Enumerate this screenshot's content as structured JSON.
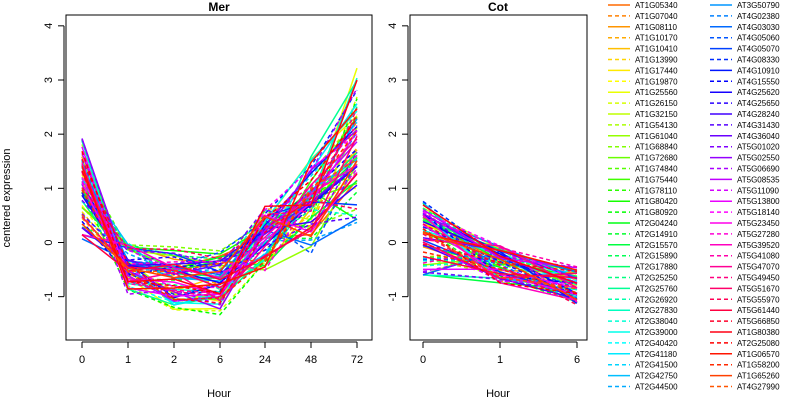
{
  "chart_data": {
    "type": "line",
    "ylabel": "centered expression",
    "xlabel": "Hour",
    "ylim": [
      -1.8,
      4.2
    ],
    "y_ticks": [
      -1,
      0,
      1,
      2,
      3,
      4
    ],
    "grid": false,
    "legend_position": "right",
    "panels": [
      {
        "title": "Mer",
        "x_ticks": [
          "0",
          "1",
          "2",
          "6",
          "24",
          "48",
          "72"
        ]
      },
      {
        "title": "Cot",
        "x_ticks": [
          "0",
          "1",
          "6"
        ]
      }
    ],
    "series_names": [
      "AT1G05340",
      "AT1G07040",
      "AT1G08110",
      "AT1G10170",
      "AT1G10410",
      "AT1G13990",
      "AT1G17440",
      "AT1G19870",
      "AT1G25560",
      "AT1G26150",
      "AT1G32150",
      "AT1G54130",
      "AT1G61040",
      "AT1G68840",
      "AT1G72680",
      "AT1G74840",
      "AT1G75440",
      "AT1G78110",
      "AT1G80420",
      "AT1G80920",
      "AT2G04240",
      "AT2G14910",
      "AT2G15570",
      "AT2G15890",
      "AT2G17880",
      "AT2G25250",
      "AT2G25760",
      "AT2G26920",
      "AT2G27830",
      "AT2G38040",
      "AT2G39000",
      "AT2G40420",
      "AT2G41180",
      "AT2G41500",
      "AT2G42750",
      "AT2G44500",
      "AT3G50790",
      "AT4G02380",
      "AT4G03030",
      "AT4G05060",
      "AT4G05070",
      "AT4G08330",
      "AT4G10910",
      "AT4G15550",
      "AT4G25620",
      "AT4G25650",
      "AT4G28240",
      "AT4G31430",
      "AT4G36040",
      "AT5G01020",
      "AT5G02550",
      "AT5G06690",
      "AT5G08535",
      "AT5G11090",
      "AT5G13800",
      "AT5G18140",
      "AT5G23450",
      "AT5G27280",
      "AT5G39520",
      "AT5G41080",
      "AT5G47070",
      "AT5G49450",
      "AT5G51670",
      "AT5G55970",
      "AT5G61440",
      "AT5G66850",
      "AT1G80380",
      "AT2G25080",
      "AT1G06570",
      "AT1G58200",
      "AT1G65260",
      "AT4G27990"
    ]
  }
}
